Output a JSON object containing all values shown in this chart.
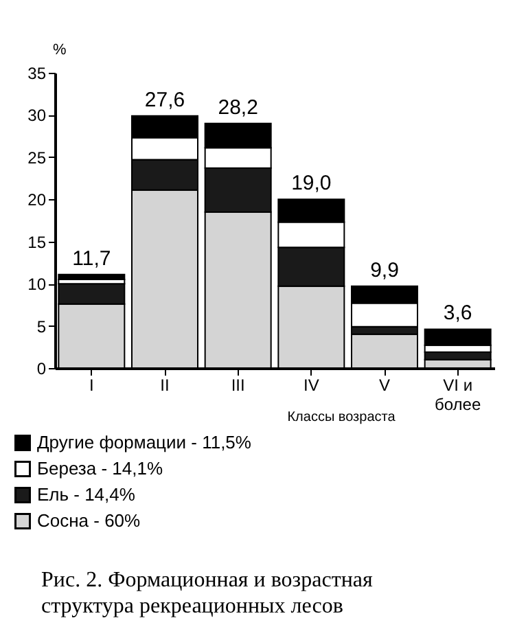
{
  "chart_data": {
    "type": "bar",
    "stacked": true,
    "ylabel": "%",
    "xlabel": "Классы возраста",
    "categories": [
      "I",
      "II",
      "III",
      "IV",
      "V",
      "VI и более"
    ],
    "series": [
      {
        "name": "Сосна - 60%",
        "color": "#d4d4d4",
        "values": [
          7.6,
          21.1,
          18.5,
          9.7,
          4.0,
          1.0
        ]
      },
      {
        "name": "Ель - 14,4%",
        "color": "#1a1a1a",
        "values": [
          2.4,
          3.6,
          5.2,
          4.6,
          0.9,
          0.9
        ]
      },
      {
        "name": "Береза - 14,1%",
        "color": "#ffffff",
        "values": [
          0.5,
          2.6,
          2.4,
          3.0,
          2.8,
          0.8
        ]
      },
      {
        "name": "Другие формации - 11,5%",
        "color": "#000000",
        "values": [
          0.6,
          2.6,
          2.9,
          2.7,
          2.0,
          1.9
        ]
      }
    ],
    "ylim": [
      0,
      35
    ],
    "yticks": [
      0,
      5,
      10,
      15,
      20,
      25,
      30,
      35
    ],
    "grid": false,
    "legend": "bottom left",
    "annotations": [
      {
        "text": "11,7",
        "x": "I",
        "y": 11.1
      },
      {
        "text": "27,6",
        "x": "II",
        "y": 29.9
      },
      {
        "text": "28,2",
        "x": "III",
        "y": 29.0
      },
      {
        "text": "19,0",
        "x": "IV",
        "y": 20.0
      },
      {
        "text": "9,9",
        "x": "V",
        "y": 9.7
      },
      {
        "text": "3,6",
        "x": "VI и более",
        "y": 4.6
      },
      "Рис. 2. Формационная и возрастная структура рекреационных лесов"
    ]
  }
}
